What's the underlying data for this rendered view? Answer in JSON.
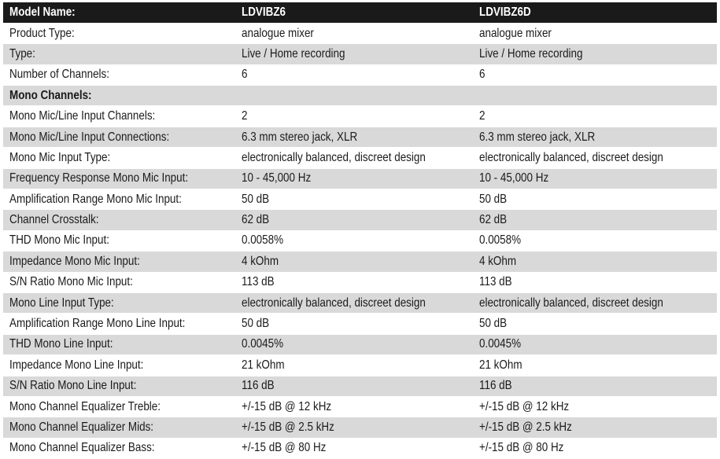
{
  "header": {
    "label": "Model Name:",
    "models": [
      "LDVIBZ6",
      "LDVIBZ6D"
    ]
  },
  "rows": [
    {
      "label": "Product Type:",
      "values": [
        "analogue mixer",
        "analogue mixer"
      ]
    },
    {
      "label": "Type:",
      "values": [
        "Live / Home recording",
        "Live / Home recording"
      ]
    },
    {
      "label": "Number of Channels:",
      "values": [
        "6",
        "6"
      ]
    },
    {
      "label": "Mono Channels:",
      "values": [
        "",
        ""
      ],
      "section": true
    },
    {
      "label": "Mono Mic/Line Input Channels:",
      "values": [
        "2",
        "2"
      ]
    },
    {
      "label": "Mono Mic/Line Input Connections:",
      "values": [
        "6.3 mm stereo jack, XLR",
        "6.3 mm stereo jack, XLR"
      ]
    },
    {
      "label": "Mono Mic Input Type:",
      "values": [
        "electronically balanced, discreet design",
        "electronically balanced, discreet design"
      ]
    },
    {
      "label": "Frequency Response Mono Mic Input:",
      "values": [
        "10 - 45,000 Hz",
        "10 - 45,000 Hz"
      ]
    },
    {
      "label": "Amplification Range Mono Mic Input:",
      "values": [
        "50 dB",
        "50 dB"
      ]
    },
    {
      "label": "Channel Crosstalk:",
      "values": [
        "62 dB",
        "62 dB"
      ]
    },
    {
      "label": "THD Mono Mic Input:",
      "values": [
        "0.0058%",
        "0.0058%"
      ]
    },
    {
      "label": "Impedance Mono Mic Input:",
      "values": [
        "4 kOhm",
        "4 kOhm"
      ]
    },
    {
      "label": "S/N Ratio Mono Mic Input:",
      "values": [
        "113 dB",
        "113 dB"
      ]
    },
    {
      "label": "Mono Line Input Type:",
      "values": [
        "electronically balanced, discreet design",
        "electronically balanced, discreet design"
      ]
    },
    {
      "label": "Amplification Range Mono Line Input:",
      "values": [
        "50 dB",
        "50 dB"
      ]
    },
    {
      "label": "THD Mono Line Input:",
      "values": [
        "0.0045%",
        "0.0045%"
      ]
    },
    {
      "label": "Impedance Mono Line Input:",
      "values": [
        "21 kOhm",
        "21 kOhm"
      ]
    },
    {
      "label": "S/N Ratio Mono Line Input:",
      "values": [
        "116 dB",
        "116 dB"
      ]
    },
    {
      "label": "Mono Channel Equalizer Treble:",
      "values": [
        "+/-15 dB @ 12 kHz",
        "+/-15 dB @ 12 kHz"
      ]
    },
    {
      "label": "Mono Channel Equalizer Mids:",
      "values": [
        "+/-15 dB @ 2.5 kHz",
        "+/-15 dB @ 2.5 kHz"
      ]
    },
    {
      "label": "Mono Channel Equalizer Bass:",
      "values": [
        "+/-15 dB @ 80 Hz",
        "+/-15 dB @ 80 Hz"
      ]
    }
  ]
}
